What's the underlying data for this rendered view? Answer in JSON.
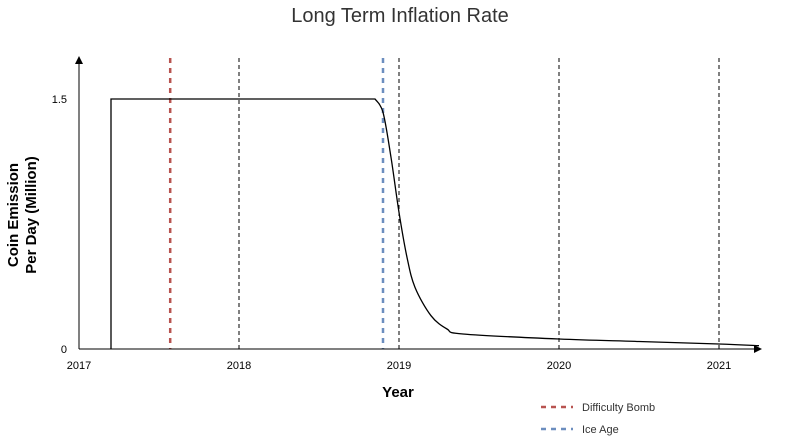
{
  "chart_data": {
    "type": "line",
    "title": "Long Term Inflation Rate",
    "xlabel": "Year",
    "ylabel": [
      "Coin Emission",
      "Per Day (Million)"
    ],
    "xlim": [
      2017,
      2021.25
    ],
    "ylim": [
      0,
      1.5
    ],
    "x_ticks": [
      "2017",
      "2018",
      "2019",
      "2020",
      "2021"
    ],
    "y_ticks": [
      "0",
      "1.5"
    ],
    "series": [
      {
        "x": [
          2017.2,
          2017.2,
          2018.85,
          2018.9,
          2018.95,
          2019.0,
          2019.05,
          2019.1,
          2019.2,
          2019.3,
          2019.4,
          2020.0,
          2020.5,
          2021.0,
          2021.25
        ],
        "y": [
          0,
          1.5,
          1.5,
          1.42,
          1.15,
          0.82,
          0.55,
          0.37,
          0.2,
          0.12,
          0.09,
          0.06,
          0.045,
          0.03,
          0.02
        ],
        "color": "#000000"
      }
    ],
    "vlines": [
      {
        "x": 2017.57,
        "color": "#b85450",
        "dash": "5,5",
        "width": 2.5
      },
      {
        "x": 2018.0,
        "color": "#000000",
        "dash": "4,3",
        "width": 1
      },
      {
        "x": 2018.9,
        "color": "#6c8ebf",
        "dash": "5,5",
        "width": 2.5
      },
      {
        "x": 2019.0,
        "color": "#000000",
        "dash": "4,3",
        "width": 1
      },
      {
        "x": 2020.0,
        "color": "#000000",
        "dash": "4,3",
        "width": 1
      },
      {
        "x": 2021.0,
        "color": "#000000",
        "dash": "4,3",
        "width": 1
      }
    ],
    "legend": [
      {
        "label": "Difficulty Bomb",
        "color": "#b85450"
      },
      {
        "label": "Ice Age",
        "color": "#6c8ebf"
      }
    ],
    "legend_placement": "bottom-right"
  }
}
